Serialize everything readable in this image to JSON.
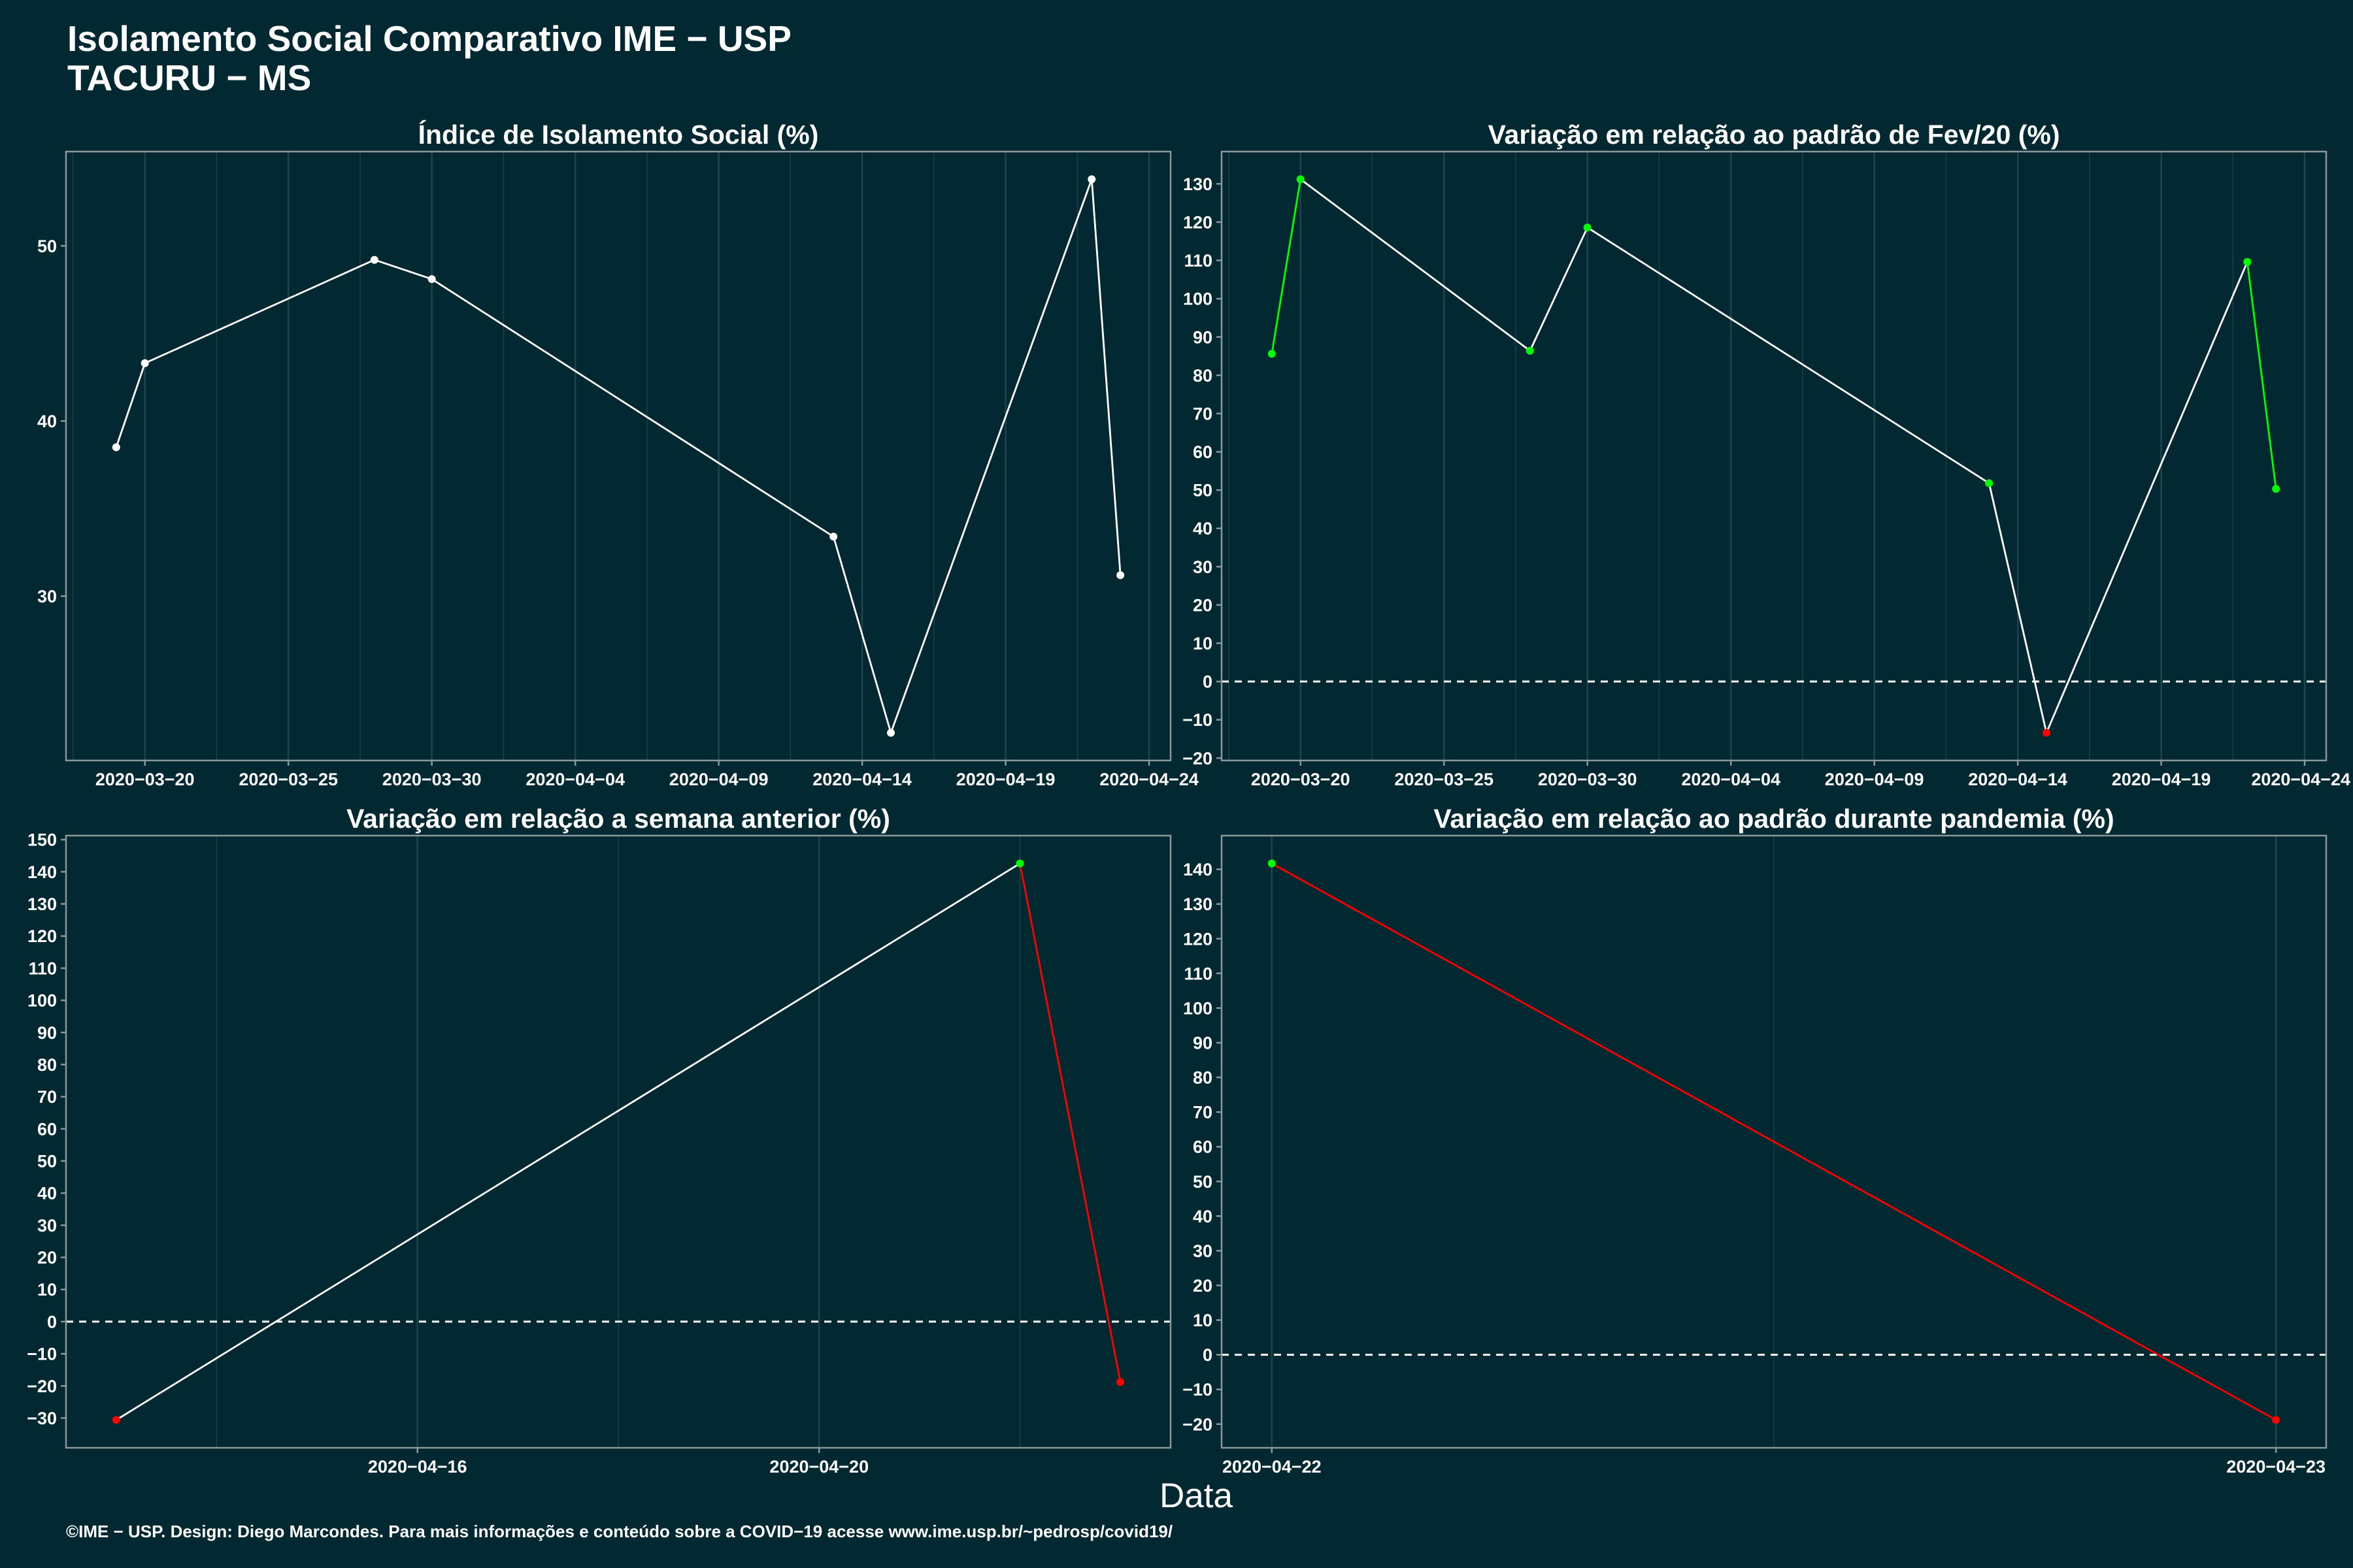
{
  "header": {
    "title": "Isolamento Social Comparativo IME − USP",
    "subtitle": "TACURU − MS"
  },
  "xlabel": "Data",
  "footer": "©IME − USP. Design: Diego Marcondes. Para mais informações e conteúdo sobre a COVID−19 acesse www.ime.usp.br/~pedrosp/covid19/",
  "colors": {
    "background": "#022832",
    "text": "#ffffff",
    "line": "#ffffff",
    "positive": "#00ff00",
    "negative": "#ff0000",
    "reference_line": "#ffffff",
    "grid": "#1f434d",
    "panel_border": "#8c9799"
  },
  "chart_data": [
    {
      "type": "line",
      "title": "Índice de Isolamento Social (%)",
      "x": [
        "2020-03-19",
        "2020-03-20",
        "2020-03-28",
        "2020-03-30",
        "2020-04-13",
        "2020-04-15",
        "2020-04-22",
        "2020-04-23"
      ],
      "y": [
        38.5,
        43.3,
        49.2,
        48.1,
        33.4,
        22.2,
        53.8,
        31.2
      ],
      "point_colors": [
        "#ffffff",
        "#ffffff",
        "#ffffff",
        "#ffffff",
        "#ffffff",
        "#ffffff",
        "#ffffff",
        "#ffffff"
      ],
      "segment_colors": [
        "#ffffff",
        "#ffffff",
        "#ffffff",
        "#ffffff",
        "#ffffff",
        "#ffffff",
        "#ffffff"
      ],
      "x_ticks": [
        "2020−03−20",
        "2020−03−25",
        "2020−03−30",
        "2020−04−04",
        "2020−04−09",
        "2020−04−14",
        "2020−04−19",
        "2020−04−24"
      ],
      "y_ticks": [
        "30",
        "40",
        "50"
      ],
      "xlim": [
        "2020-03-17T06:00",
        "2020-04-24T18:00"
      ],
      "ylim": [
        20.62,
        55.38
      ],
      "grid": "vertical",
      "reference_line": null
    },
    {
      "type": "line",
      "title": "Variação em relação ao padrão de Fev/20 (%)",
      "x": [
        "2020-03-19",
        "2020-03-20",
        "2020-03-28",
        "2020-03-30",
        "2020-04-13",
        "2020-04-15",
        "2020-04-22",
        "2020-04-23"
      ],
      "y": [
        85.6,
        131.2,
        86.4,
        118.6,
        51.8,
        -13.4,
        109.6,
        50.3
      ],
      "point_colors": [
        "#00ff00",
        "#00ff00",
        "#00ff00",
        "#00ff00",
        "#00ff00",
        "#ff0000",
        "#00ff00",
        "#00ff00"
      ],
      "segment_colors": [
        "#00ff00",
        "#ffffff",
        "#ffffff",
        "#ffffff",
        "#ffffff",
        "#ffffff",
        "#00ff00"
      ],
      "x_ticks": [
        "2020−03−20",
        "2020−03−25",
        "2020−03−30",
        "2020−04−04",
        "2020−04−09",
        "2020−04−14",
        "2020−04−19",
        "2020−04−24"
      ],
      "y_ticks": [
        "−20",
        "−10",
        "0",
        "10",
        "20",
        "30",
        "40",
        "50",
        "60",
        "70",
        "80",
        "90",
        "100",
        "110",
        "120",
        "130"
      ],
      "xlim": [
        "2020-03-17T06:00",
        "2020-04-24T18:00"
      ],
      "ylim": [
        -20.63,
        138.43
      ],
      "grid": "vertical",
      "reference_line": {
        "y": 0,
        "style": "dashed"
      }
    },
    {
      "type": "line",
      "title": "Variação em relação a semana anterior (%)",
      "x": [
        "2020-04-13",
        "2020-04-22",
        "2020-04-23"
      ],
      "y": [
        -30.6,
        142.6,
        -18.8
      ],
      "point_colors": [
        "#ff0000",
        "#00ff00",
        "#ff0000"
      ],
      "segment_colors": [
        "#ffffff",
        "#ff0000"
      ],
      "x_ticks": [
        "2020−04−16",
        "2020−04−20"
      ],
      "y_ticks": [
        "−30",
        "−20",
        "−10",
        "0",
        "10",
        "20",
        "30",
        "40",
        "50",
        "60",
        "70",
        "80",
        "90",
        "100",
        "110",
        "120",
        "130",
        "140",
        "150"
      ],
      "xlim": [
        "2020-04-12T12:00",
        "2020-04-23T12:00"
      ],
      "ylim": [
        -39.26,
        151.26
      ],
      "grid": "vertical",
      "reference_line": {
        "y": 0,
        "style": "dashed"
      }
    },
    {
      "type": "line",
      "title": "Variação em relação ao padrão durante pandemia (%)",
      "x": [
        "2020-04-22",
        "2020-04-23"
      ],
      "y": [
        141.7,
        -18.8
      ],
      "point_colors": [
        "#00ff00",
        "#ff0000"
      ],
      "segment_colors": [
        "#ff0000"
      ],
      "x_ticks": [
        "2020−04−22",
        "2020−04−23"
      ],
      "y_ticks": [
        "−20",
        "−10",
        "0",
        "10",
        "20",
        "30",
        "40",
        "50",
        "60",
        "70",
        "80",
        "90",
        "100",
        "110",
        "120",
        "130",
        "140"
      ],
      "xlim": [
        "2020-04-21T22:48",
        "2020-04-23T01:12"
      ],
      "ylim": [
        -26.83,
        149.73
      ],
      "grid": "vertical",
      "reference_line": {
        "y": 0,
        "style": "dashed"
      }
    }
  ]
}
